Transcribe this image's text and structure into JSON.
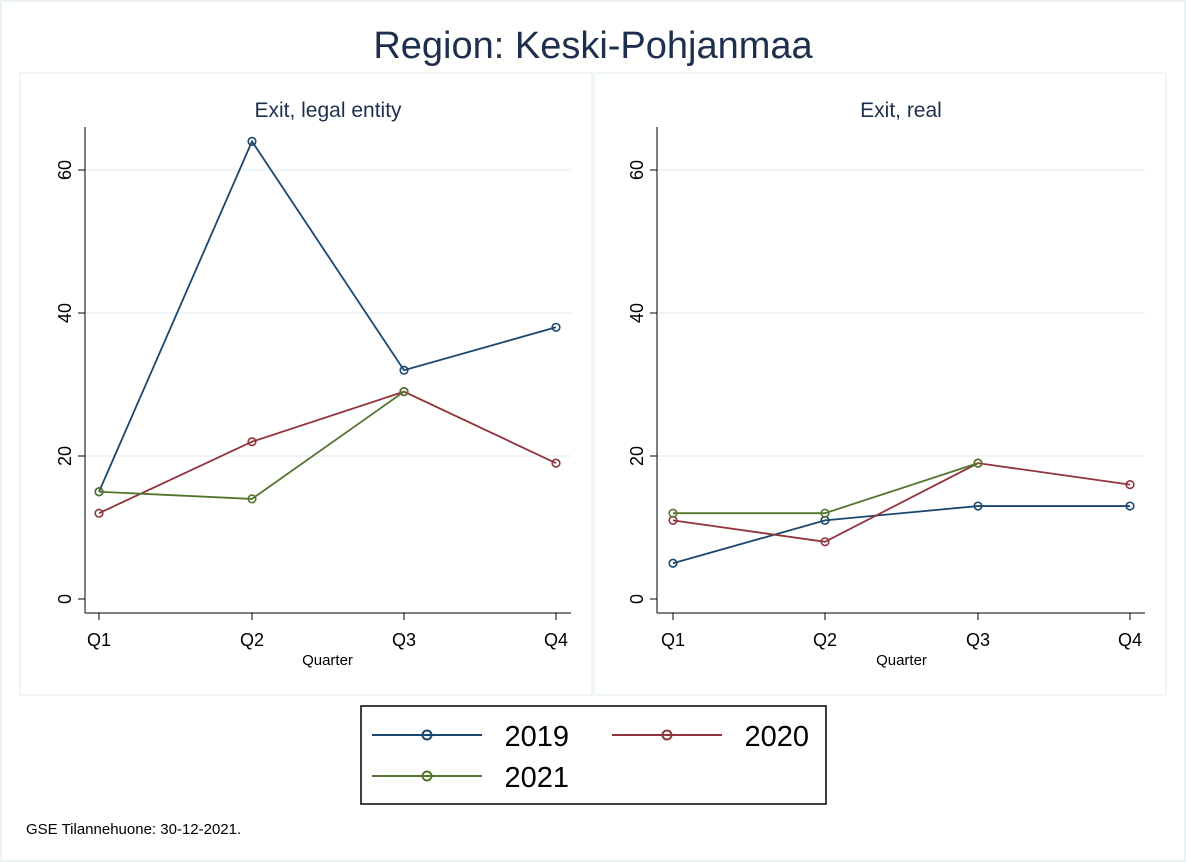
{
  "figure": {
    "title": "Region: Keski-Pohjanmaa",
    "footnote": "GSE Tilannehuone: 30-12-2021."
  },
  "legend": {
    "placement": "bottom-center",
    "entries": [
      {
        "label": "2019",
        "color": "#1a476f"
      },
      {
        "label": "2020",
        "color": "#90353b"
      },
      {
        "label": "2021",
        "color": "#55752f"
      }
    ]
  },
  "chart_data": [
    {
      "type": "line",
      "title": "Exit, legal entity",
      "xlabel": "Quarter",
      "ylabel": "",
      "categories": [
        "Q1",
        "Q2",
        "Q3",
        "Q4"
      ],
      "yticks": [
        0,
        20,
        40,
        60
      ],
      "ylim": [
        0,
        66
      ],
      "grid": true,
      "series": [
        {
          "name": "2019",
          "color": "#1a476f",
          "values": [
            15,
            64,
            32,
            38
          ]
        },
        {
          "name": "2020",
          "color": "#90353b",
          "values": [
            12,
            22,
            29,
            19
          ]
        },
        {
          "name": "2021",
          "color": "#55752f",
          "values": [
            15,
            14,
            29,
            null
          ]
        }
      ]
    },
    {
      "type": "line",
      "title": "Exit, real",
      "xlabel": "Quarter",
      "ylabel": "",
      "categories": [
        "Q1",
        "Q2",
        "Q3",
        "Q4"
      ],
      "yticks": [
        0,
        20,
        40,
        60
      ],
      "ylim": [
        0,
        66
      ],
      "grid": true,
      "series": [
        {
          "name": "2019",
          "color": "#1a476f",
          "values": [
            5,
            11,
            13,
            13
          ]
        },
        {
          "name": "2020",
          "color": "#90353b",
          "values": [
            11,
            8,
            19,
            16
          ]
        },
        {
          "name": "2021",
          "color": "#55752f",
          "values": [
            12,
            12,
            19,
            null
          ]
        }
      ]
    }
  ]
}
